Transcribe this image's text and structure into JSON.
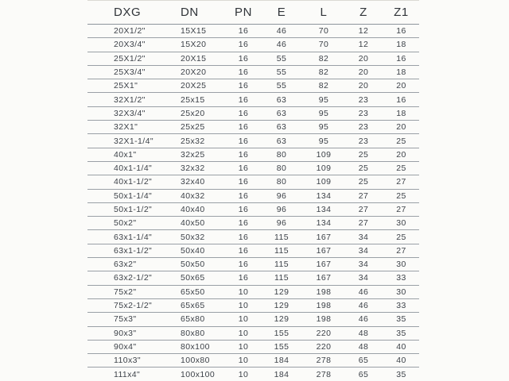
{
  "table": {
    "columns": [
      "DXG",
      "DN",
      "PN",
      "E",
      "L",
      "Z",
      "Z1"
    ],
    "rows": [
      [
        "20X1/2\"",
        "15X15",
        16,
        46,
        70,
        12,
        16
      ],
      [
        "20X3/4\"",
        "15X20",
        16,
        46,
        70,
        12,
        18
      ],
      [
        "25X1/2\"",
        "20X15",
        16,
        55,
        82,
        20,
        16
      ],
      [
        "25X3/4\"",
        "20X20",
        16,
        55,
        82,
        20,
        18
      ],
      [
        "25X1\"",
        "20X25",
        16,
        55,
        82,
        20,
        20
      ],
      [
        "32X1/2\"",
        "25x15",
        16,
        63,
        95,
        23,
        16
      ],
      [
        "32X3/4\"",
        "25x20",
        16,
        63,
        95,
        23,
        18
      ],
      [
        "32X1\"",
        "25x25",
        16,
        63,
        95,
        23,
        20
      ],
      [
        "32X1-1/4\"",
        "25x32",
        16,
        63,
        95,
        23,
        25
      ],
      [
        "40x1\"",
        "32x25",
        16,
        80,
        109,
        25,
        20
      ],
      [
        "40x1-1/4\"",
        "32x32",
        16,
        80,
        109,
        25,
        25
      ],
      [
        "40x1-1/2\"",
        "32x40",
        16,
        80,
        109,
        25,
        27
      ],
      [
        "50x1-1/4\"",
        "40x32",
        16,
        96,
        134,
        27,
        25
      ],
      [
        "50x1-1/2\"",
        "40x40",
        16,
        96,
        134,
        27,
        27
      ],
      [
        "50x2\"",
        "40x50",
        16,
        96,
        134,
        27,
        30
      ],
      [
        "63x1-1/4\"",
        "50x32",
        16,
        115,
        167,
        34,
        25
      ],
      [
        "63x1-1/2\"",
        "50x40",
        16,
        115,
        167,
        34,
        27
      ],
      [
        "63x2\"",
        "50x50",
        16,
        115,
        167,
        34,
        30
      ],
      [
        "63x2-1/2\"",
        "50x65",
        16,
        115,
        167,
        34,
        33
      ],
      [
        "75x2\"",
        "65x50",
        10,
        129,
        198,
        46,
        30
      ],
      [
        "75x2-1/2\"",
        "65x65",
        10,
        129,
        198,
        46,
        33
      ],
      [
        "75x3\"",
        "65x80",
        10,
        129,
        198,
        46,
        35
      ],
      [
        "90x3\"",
        "80x80",
        10,
        155,
        220,
        48,
        35
      ],
      [
        "90x4\"",
        "80x100",
        10,
        155,
        220,
        48,
        40
      ],
      [
        "110x3\"",
        "100x80",
        10,
        184,
        278,
        65,
        40
      ],
      [
        "111x4\"",
        "100x100",
        10,
        184,
        278,
        65,
        35
      ]
    ]
  },
  "colors": {
    "background": "#fbfbf9",
    "header_text": "#303439",
    "cell_text": "#3d4249",
    "header_line": "#8d949b",
    "row_line": "#9aa0a6",
    "top_faint_line": "#dbdad4"
  }
}
